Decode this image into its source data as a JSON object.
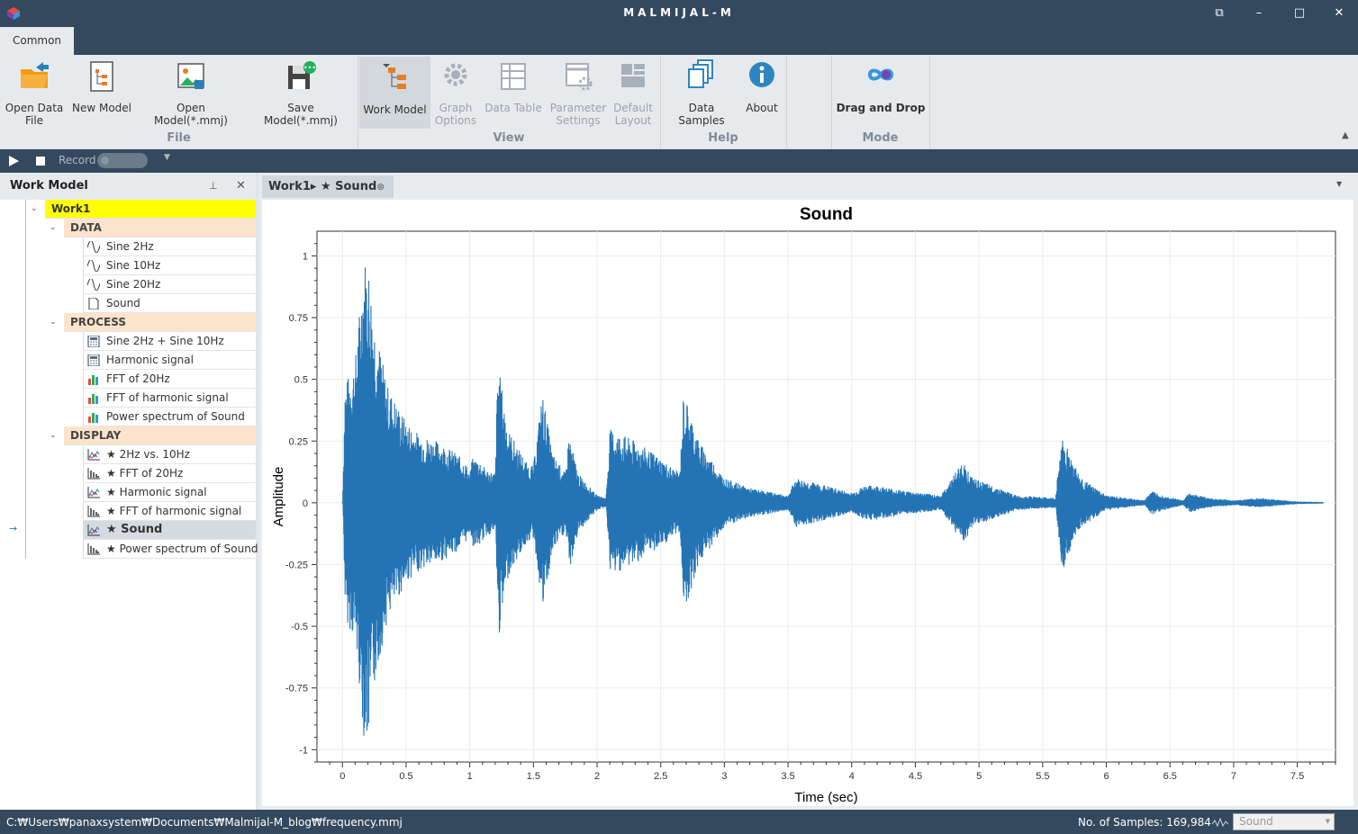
{
  "app": {
    "title": "MALMIJAL-M"
  },
  "ribbon": {
    "tab": "Common",
    "buttons": {
      "open_data_file": "Open Data\nFile",
      "new_model": "New Model",
      "open_model": "Open Model(*.mmj)",
      "save_model": "Save Model(*.mmj)",
      "work_model": "Work Model",
      "graph_options": "Graph\nOptions",
      "data_table": "Data Table",
      "parameter_settings": "Parameter\nSettings",
      "default_layout": "Default\nLayout",
      "data_samples": "Data Samples",
      "about": "About",
      "drag_and_drop": "Drag and Drop"
    },
    "groups": {
      "file": "File",
      "view": "View",
      "help": "Help",
      "mode": "Mode"
    }
  },
  "record": {
    "label": "Record"
  },
  "work_model": {
    "title": "Work Model",
    "root": "Work1",
    "categories": [
      {
        "label": "DATA",
        "items": [
          {
            "label": "Sine 2Hz",
            "icon": "sine-icon"
          },
          {
            "label": "Sine 10Hz",
            "icon": "sine-icon"
          },
          {
            "label": "Sine 20Hz",
            "icon": "sine-icon"
          },
          {
            "label": "Sound",
            "icon": "document-icon"
          }
        ]
      },
      {
        "label": "PROCESS",
        "items": [
          {
            "label": "Sine 2Hz + Sine 10Hz",
            "icon": "calculator-icon"
          },
          {
            "label": "Harmonic signal",
            "icon": "calculator-icon"
          },
          {
            "label": "FFT of 20Hz",
            "icon": "bar-chart-icon"
          },
          {
            "label": "FFT of harmonic signal",
            "icon": "bar-chart-icon"
          },
          {
            "label": "Power spectrum of Sound",
            "icon": "bar-chart-icon"
          }
        ]
      },
      {
        "label": "DISPLAY",
        "items": [
          {
            "label": "★ 2Hz vs. 10Hz",
            "icon": "line-chart-icon"
          },
          {
            "label": "★ FFT of 20Hz",
            "icon": "histogram-icon"
          },
          {
            "label": "★ Harmonic signal",
            "icon": "line-chart-icon"
          },
          {
            "label": "★ FFT of harmonic signal",
            "icon": "histogram-icon"
          },
          {
            "label": "★ Sound",
            "icon": "line-chart-icon",
            "selected": true
          },
          {
            "label": "★ Power spectrum of Sound",
            "icon": "histogram-icon"
          }
        ]
      }
    ]
  },
  "document": {
    "tab_label": "Work1▸ ★ Sound"
  },
  "chart_data": {
    "type": "line",
    "title": "Sound",
    "xlabel": "Time (sec)",
    "ylabel": "Amplitude",
    "xlim": [
      -0.2,
      7.8
    ],
    "ylim": [
      -1.05,
      1.1
    ],
    "xticks": [
      0,
      0.5,
      1,
      1.5,
      2,
      2.5,
      3,
      3.5,
      4,
      4.5,
      5,
      5.5,
      6,
      6.5,
      7,
      7.5
    ],
    "yticks": [
      -1,
      -0.75,
      -0.5,
      -0.25,
      0,
      0.25,
      0.5,
      0.75,
      1
    ],
    "xtick_labels": [
      "0",
      "0.5",
      "1",
      "1.5",
      "2",
      "2.5",
      "3",
      "3.5",
      "4",
      "4.5",
      "5",
      "5.5",
      "6",
      "6.5",
      "7",
      "7.5"
    ],
    "ytick_labels": [
      "-1",
      "-0.75",
      "-0.5",
      "-0.25",
      "0",
      "0.25",
      "0.5",
      "0.75",
      "1"
    ],
    "grid": true,
    "color": "#2474b5",
    "envelope": [
      [
        0,
        0
      ],
      [
        0.02,
        0.48
      ],
      [
        0.1,
        0.58
      ],
      [
        0.17,
        1.0
      ],
      [
        0.2,
        1.0
      ],
      [
        0.25,
        0.75
      ],
      [
        0.35,
        0.48
      ],
      [
        0.5,
        0.33
      ],
      [
        0.6,
        0.28
      ],
      [
        0.75,
        0.25
      ],
      [
        0.9,
        0.2
      ],
      [
        0.97,
        0.16
      ],
      [
        1.0,
        0.12
      ],
      [
        1.02,
        0.18
      ],
      [
        1.07,
        0.18
      ],
      [
        1.12,
        0.14
      ],
      [
        1.2,
        0.12
      ],
      [
        1.22,
        0.58
      ],
      [
        1.3,
        0.3
      ],
      [
        1.45,
        0.16
      ],
      [
        1.5,
        0.15
      ],
      [
        1.57,
        0.45
      ],
      [
        1.65,
        0.2
      ],
      [
        1.75,
        0.12
      ],
      [
        1.78,
        0.28
      ],
      [
        1.85,
        0.12
      ],
      [
        2.0,
        0.03
      ],
      [
        2.07,
        0.02
      ],
      [
        2.1,
        0.3
      ],
      [
        2.3,
        0.25
      ],
      [
        2.5,
        0.18
      ],
      [
        2.65,
        0.12
      ],
      [
        2.68,
        0.45
      ],
      [
        2.8,
        0.25
      ],
      [
        3.0,
        0.1
      ],
      [
        3.2,
        0.06
      ],
      [
        3.5,
        0.03
      ],
      [
        3.56,
        0.1
      ],
      [
        3.8,
        0.07
      ],
      [
        4.0,
        0.04
      ],
      [
        4.1,
        0.07
      ],
      [
        4.2,
        0.07
      ],
      [
        4.4,
        0.05
      ],
      [
        4.7,
        0.03
      ],
      [
        4.87,
        0.17
      ],
      [
        4.95,
        0.1
      ],
      [
        5.1,
        0.07
      ],
      [
        5.3,
        0.03
      ],
      [
        5.6,
        0.02
      ],
      [
        5.65,
        0.28
      ],
      [
        5.8,
        0.1
      ],
      [
        6.0,
        0.03
      ],
      [
        6.3,
        0.01
      ],
      [
        6.35,
        0.05
      ],
      [
        6.45,
        0.03
      ],
      [
        6.6,
        0.01
      ],
      [
        6.65,
        0.04
      ],
      [
        6.8,
        0.02
      ],
      [
        7.0,
        0.01
      ],
      [
        7.2,
        0.02
      ],
      [
        7.5,
        0.005
      ],
      [
        7.7,
        0.003
      ]
    ]
  },
  "status": {
    "path": "C:₩Users₩panaxsystem₩Documents₩Malmijal-M_blog₩frequency.mmj",
    "samples": "No. of Samples: 169,984",
    "combo": "Sound"
  }
}
